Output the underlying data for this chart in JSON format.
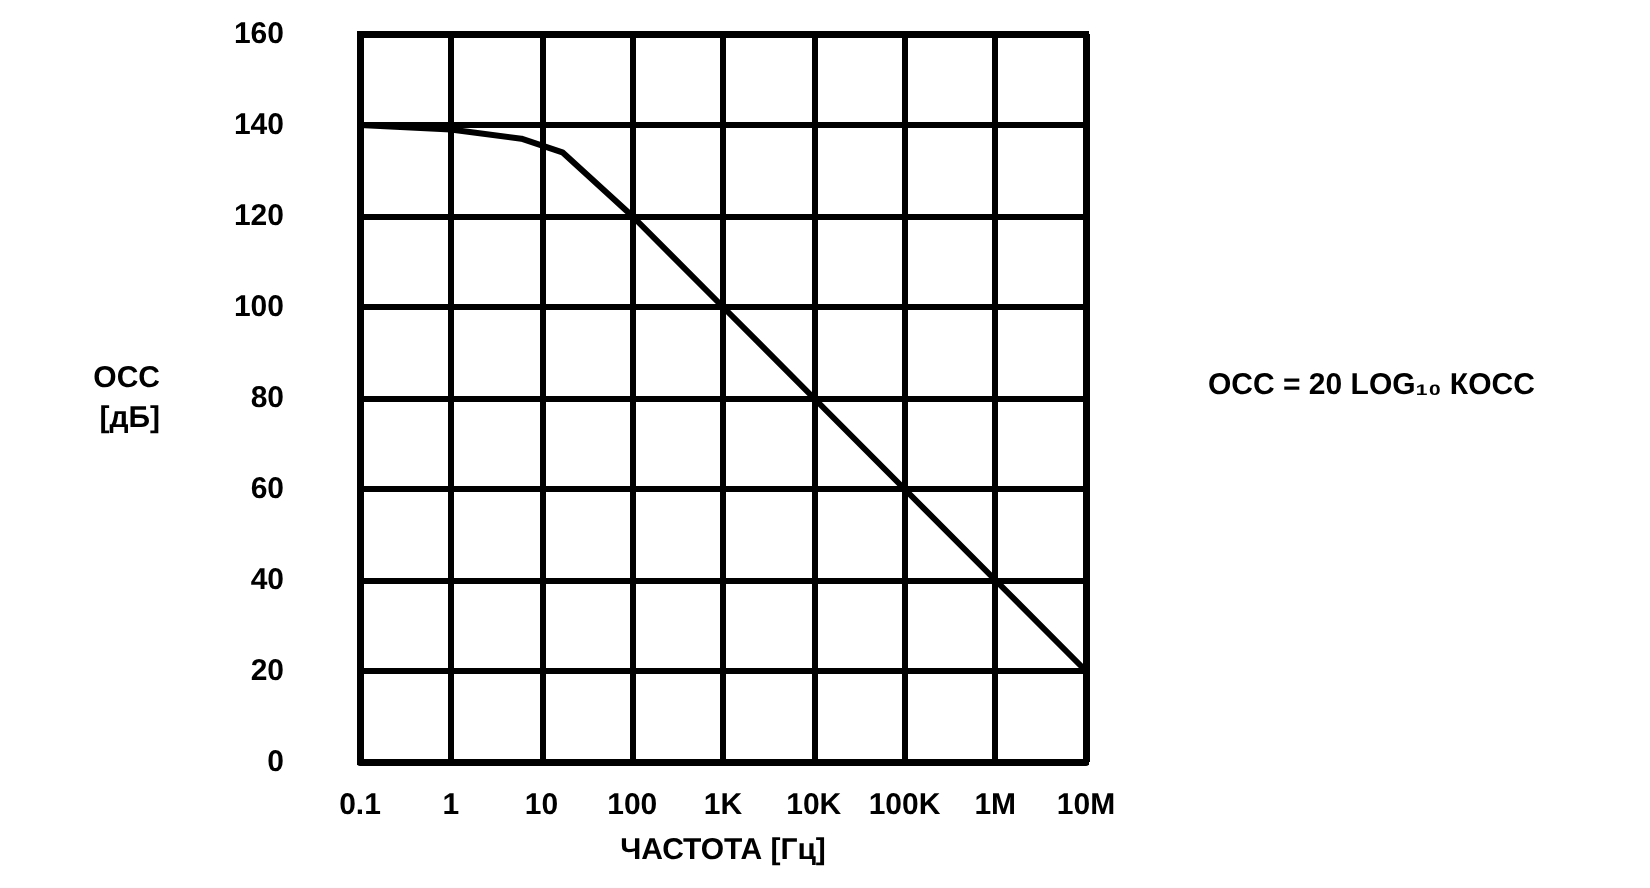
{
  "chart_data": {
    "type": "line",
    "xlabel": "ЧАСТОТА [Гц]",
    "ylabel": "ОСС\n[дБ]",
    "annotations": [
      "ОСС = 20 LOG₁₀ КОСС"
    ],
    "log": "x",
    "grid": true,
    "marker": "none",
    "line_style": "solid",
    "xlim": [
      0.1,
      10000000
    ],
    "ylim": [
      0,
      160
    ],
    "xticks": [
      0.1,
      1,
      10,
      100,
      {
        "value": 1000,
        "label": "1K"
      },
      {
        "value": 10000,
        "label": "10K"
      },
      {
        "value": 100000,
        "label": "100K"
      },
      {
        "value": 1000000,
        "label": "1M"
      },
      {
        "value": 10000000,
        "label": "10M"
      }
    ],
    "yticks": [
      0,
      20,
      40,
      60,
      80,
      100,
      120,
      140,
      160
    ],
    "x": [
      0.1,
      1,
      6,
      17,
      100,
      1000,
      10000,
      100000,
      1000000,
      10000000
    ],
    "series": [
      {
        "color": "#000000",
        "values": [
          140,
          139,
          137,
          134,
          120,
          100,
          80,
          60,
          40,
          20
        ]
      }
    ]
  }
}
